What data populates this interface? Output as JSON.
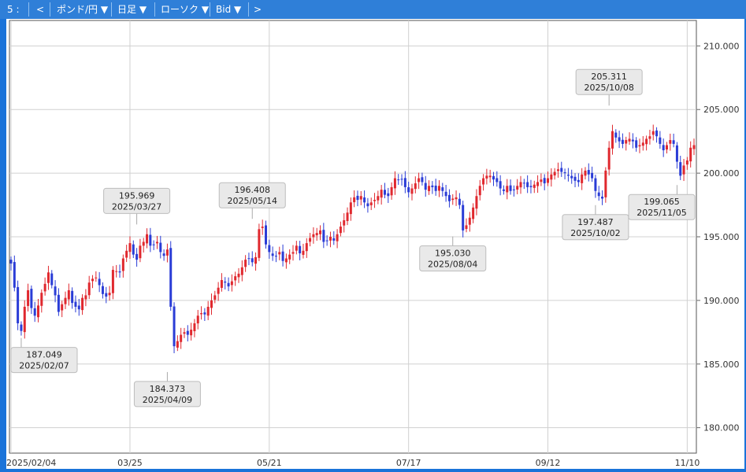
{
  "toolbar": {
    "slot": "5 :",
    "prev": "<",
    "pair": "ポンド/円 ▼",
    "period": "日足 ▼",
    "chart_type": "ローソク ▼",
    "price_type": "Bid ▼",
    "next": ">"
  },
  "colors": {
    "toolbar": "#2f7fd8",
    "up": "#e0282e",
    "down": "#2a3cd6",
    "grid": "#d0d0d0"
  },
  "chart_data": {
    "type": "candlestick",
    "ylim": [
      178.0,
      212.0
    ],
    "y_ticks": [
      "210.000",
      "205.000",
      "200.000",
      "195.000",
      "190.000",
      "185.000",
      "180.000"
    ],
    "x_ticks": [
      {
        "label": "2025/02/04",
        "index": 0
      },
      {
        "label": "03/25",
        "index": 35
      },
      {
        "label": "05/21",
        "index": 76
      },
      {
        "label": "07/17",
        "index": 117
      },
      {
        "label": "09/12",
        "index": 158
      },
      {
        "label": "11/10",
        "index": 199
      }
    ],
    "close": [
      192.9,
      191.0,
      188.2,
      187.6,
      189.5,
      190.8,
      189.4,
      188.8,
      189.6,
      190.6,
      191.3,
      192.2,
      191.2,
      190.4,
      189.1,
      189.7,
      190.2,
      190.8,
      189.8,
      189.5,
      189.3,
      190.2,
      190.4,
      191.4,
      191.7,
      191.8,
      191.2,
      190.5,
      190.3,
      190.6,
      192.4,
      192.3,
      192.2,
      193.3,
      193.9,
      194.5,
      193.6,
      193.2,
      194.3,
      194.6,
      195.2,
      194.3,
      194.4,
      194.6,
      193.8,
      193.5,
      194.0,
      189.5,
      186.4,
      186.8,
      187.3,
      187.5,
      187.3,
      187.7,
      188.2,
      188.8,
      189.0,
      188.9,
      189.5,
      190.0,
      190.4,
      191.0,
      191.6,
      191.4,
      191.1,
      191.5,
      191.9,
      192.1,
      192.6,
      193.2,
      193.3,
      193.0,
      193.4,
      195.6,
      195.8,
      194.4,
      193.8,
      193.5,
      193.5,
      193.8,
      193.1,
      193.3,
      193.6,
      193.8,
      194.3,
      193.7,
      193.9,
      194.5,
      194.9,
      195.2,
      195.3,
      195.5,
      194.6,
      194.7,
      195.0,
      194.7,
      195.2,
      195.8,
      196.3,
      196.9,
      197.7,
      198.1,
      197.9,
      198.2,
      197.7,
      197.4,
      197.7,
      197.9,
      198.2,
      198.7,
      198.3,
      198.2,
      198.9,
      199.6,
      199.5,
      199.5,
      198.9,
      198.5,
      198.8,
      199.2,
      199.6,
      199.3,
      198.7,
      199.0,
      198.9,
      198.6,
      199.0,
      198.6,
      198.2,
      197.8,
      198.0,
      198.1,
      197.5,
      195.5,
      195.9,
      196.5,
      197.3,
      198.2,
      199.0,
      199.6,
      199.8,
      199.8,
      199.5,
      199.3,
      198.8,
      198.6,
      199.0,
      198.6,
      198.7,
      199.0,
      199.3,
      199.2,
      198.9,
      198.9,
      199.1,
      199.3,
      199.5,
      199.2,
      199.6,
      199.9,
      200.1,
      200.3,
      200.1,
      200.0,
      199.8,
      199.6,
      199.4,
      199.3,
      199.9,
      200.2,
      199.9,
      199.6,
      198.6,
      198.2,
      198.0,
      200.2,
      202.0,
      203.3,
      202.8,
      202.5,
      202.3,
      202.6,
      202.7,
      202.5,
      202.0,
      202.2,
      202.4,
      202.7,
      202.9,
      203.3,
      202.9,
      202.3,
      201.8,
      202.2,
      202.6,
      202.3,
      200.9,
      199.8,
      200.6,
      201.0,
      202.0,
      202.2
    ],
    "callouts": [
      {
        "price": "187.049",
        "date": "2025/02/07",
        "kind": "low"
      },
      {
        "price": "195.969",
        "date": "2025/03/27",
        "kind": "high"
      },
      {
        "price": "184.373",
        "date": "2025/04/09",
        "kind": "low"
      },
      {
        "price": "196.408",
        "date": "2025/05/14",
        "kind": "high"
      },
      {
        "price": "195.030",
        "date": "2025/08/04",
        "kind": "low"
      },
      {
        "price": "197.487",
        "date": "2025/10/02",
        "kind": "low"
      },
      {
        "price": "205.311",
        "date": "2025/10/08",
        "kind": "high"
      },
      {
        "price": "199.065",
        "date": "2025/11/05",
        "kind": "low"
      }
    ]
  }
}
